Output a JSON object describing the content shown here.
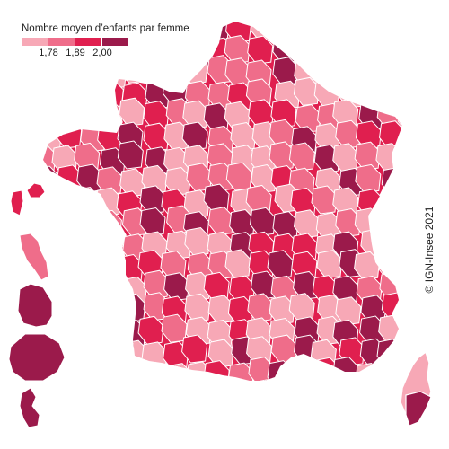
{
  "legend": {
    "title": "Nombre moyen d’enfants par femme",
    "ticks": [
      "1,78",
      "1,89",
      "2,00"
    ],
    "colors": [
      "#f7a8b6",
      "#ef6d8a",
      "#e01f4f",
      "#9b1a4b"
    ]
  },
  "copyright": "© IGN-Insee 2021",
  "map": {
    "border_color": "#ffffff",
    "regions": [
      {
        "name": "metropolitan-france",
        "class": 2
      },
      {
        "name": "corsica",
        "class": 0
      },
      {
        "name": "guadeloupe",
        "class": 2
      },
      {
        "name": "martinique",
        "class": 1
      },
      {
        "name": "guyane",
        "class": 3
      },
      {
        "name": "la-reunion",
        "class": 3
      },
      {
        "name": "mayotte",
        "class": 3
      }
    ]
  }
}
